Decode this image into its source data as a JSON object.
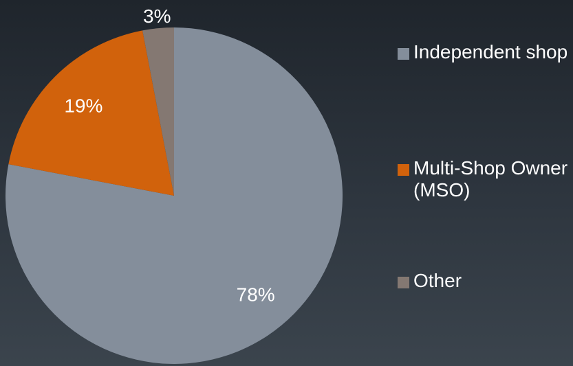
{
  "chart_data": {
    "type": "pie",
    "slices": [
      {
        "label": "Independent shop",
        "value": 78,
        "value_label": "78%",
        "color": "#848e9b"
      },
      {
        "label": "Multi-Shop Owner (MSO)",
        "value": 19,
        "value_label": "19%",
        "color": "#d1620c"
      },
      {
        "label": "Other",
        "value": 3,
        "value_label": "3%",
        "color": "#847872"
      }
    ],
    "start_angle": "12 o'clock",
    "direction": "clockwise",
    "legend_placement": "right"
  }
}
